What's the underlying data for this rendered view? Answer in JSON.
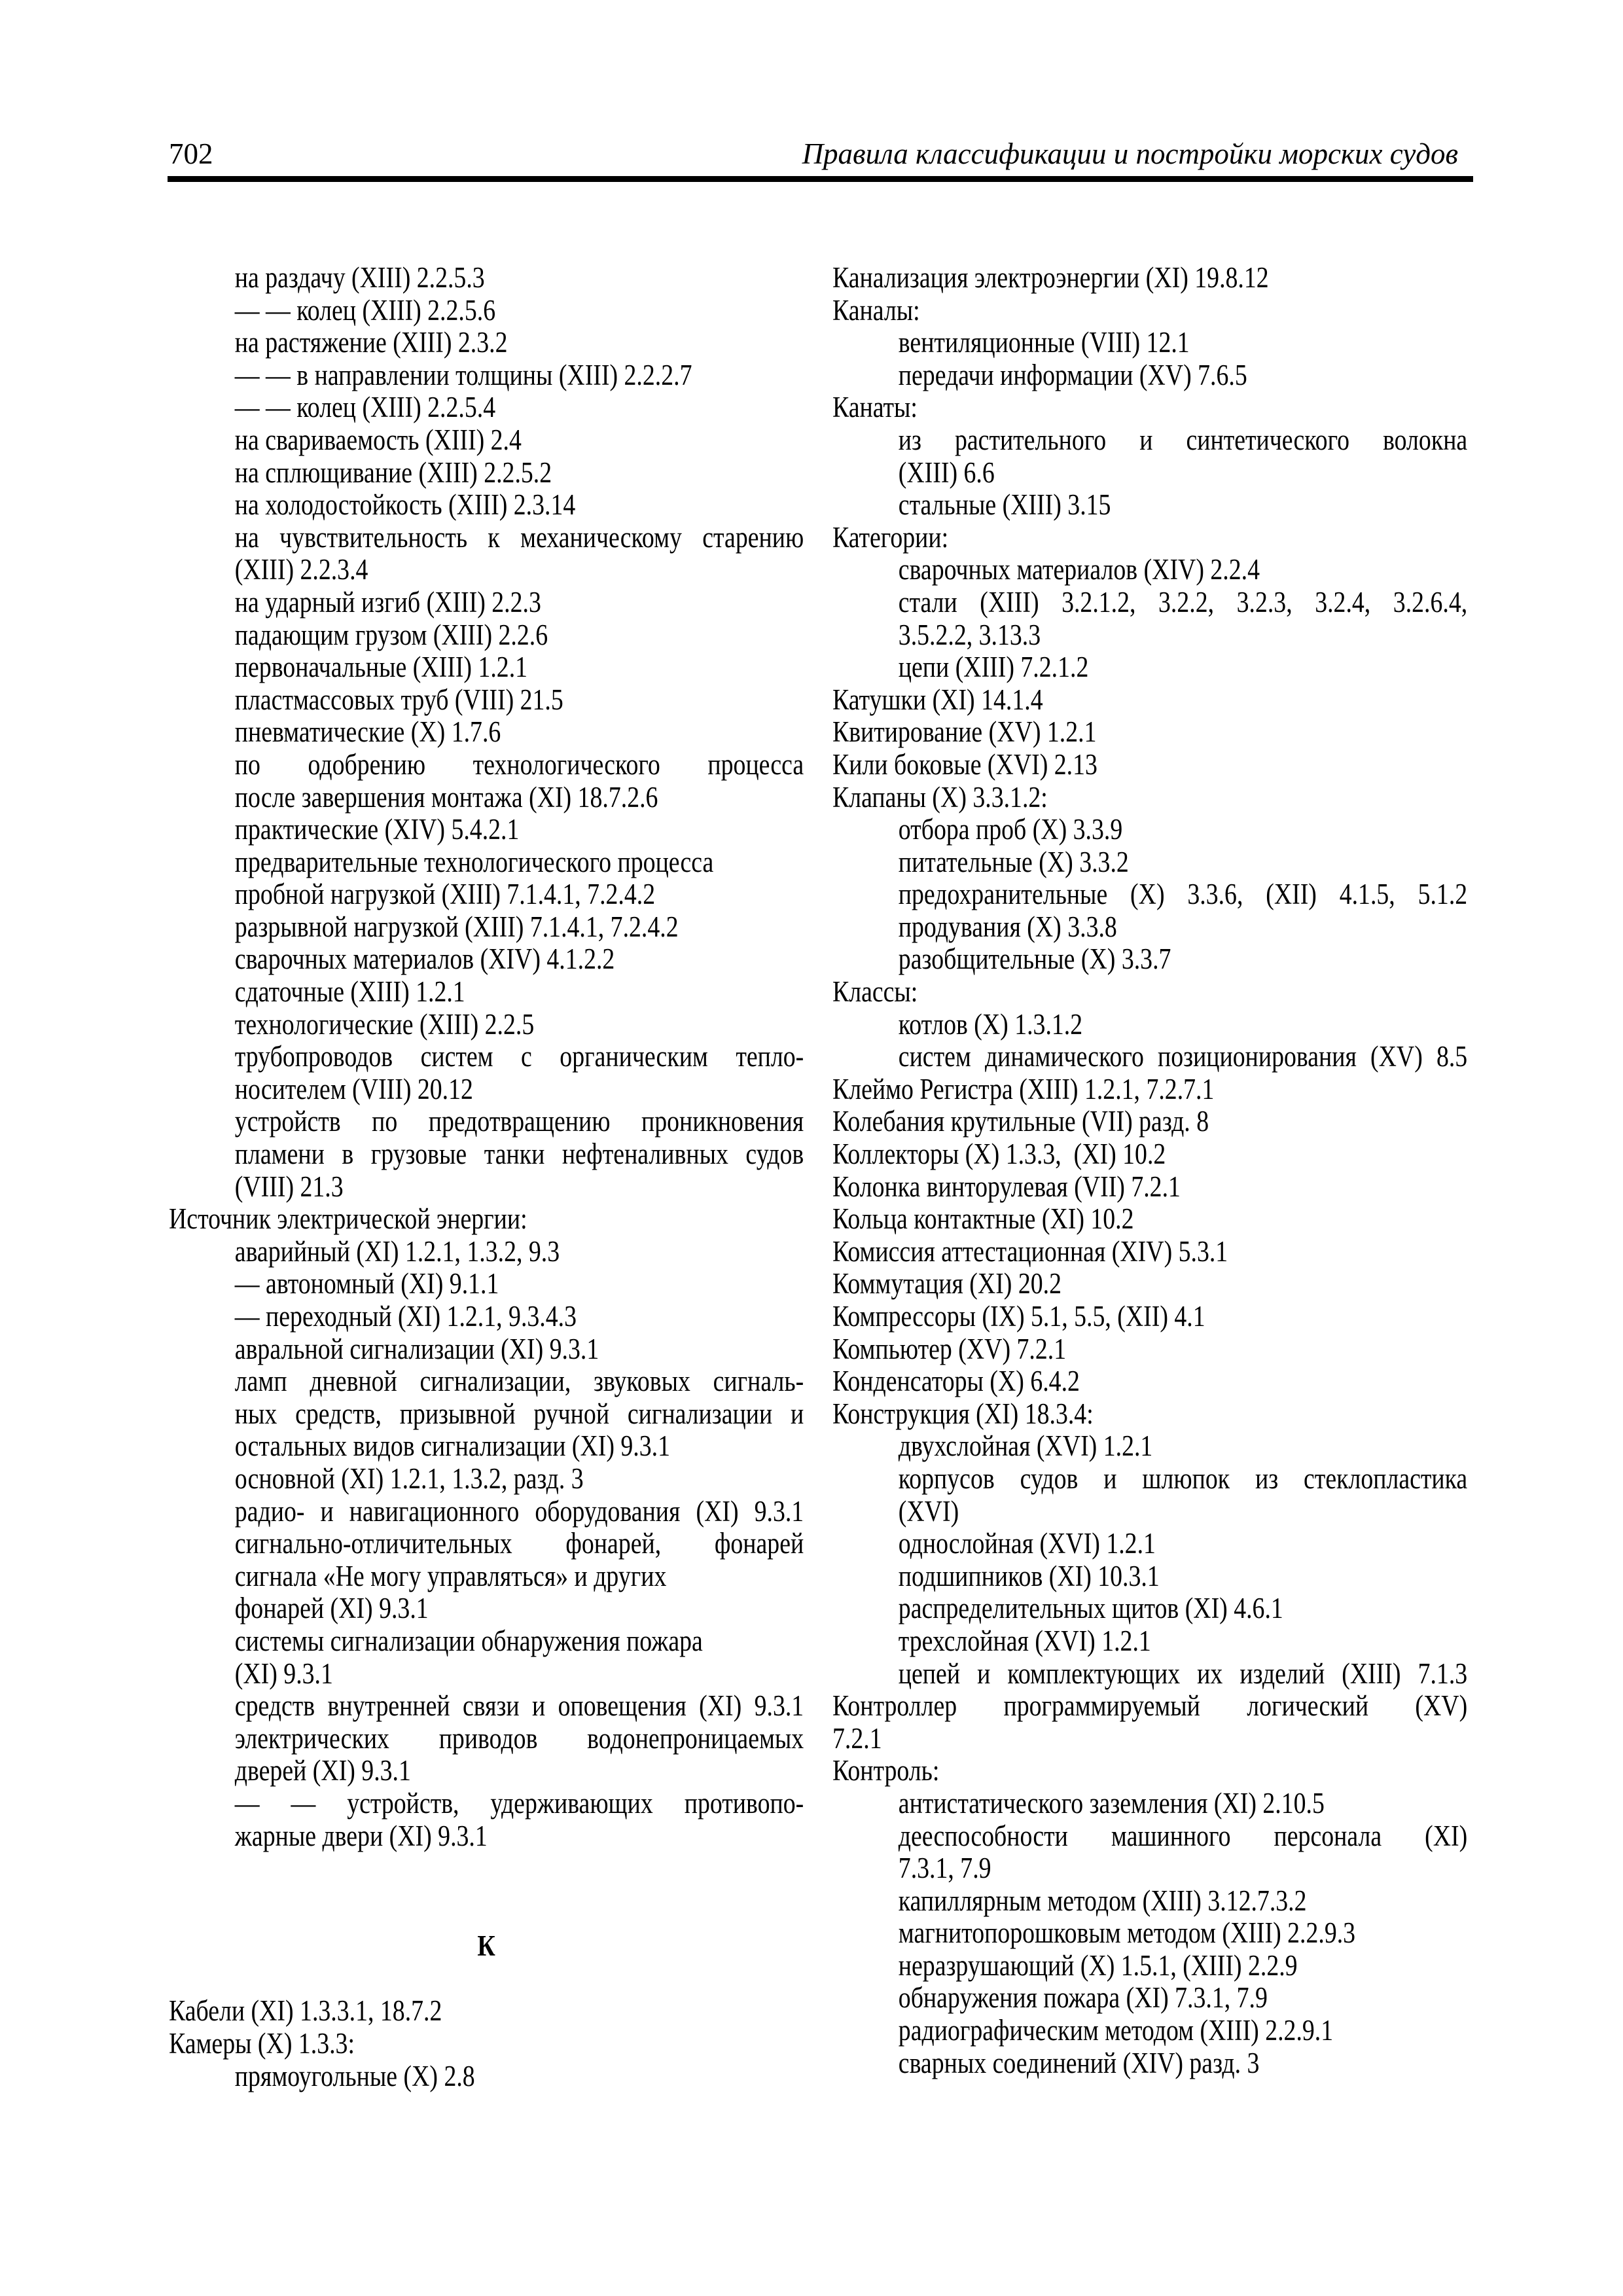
{
  "header": {
    "page_number": "702",
    "title": "Правила классификации и постройки морских судов"
  },
  "left_column": {
    "lines": [
      {
        "t": "на раздачу (XIII) 2.2.5.3",
        "i": 1
      },
      {
        "t": "— — колец (XIII) 2.2.5.6",
        "i": 1
      },
      {
        "t": "на растяжение (XIII) 2.3.2",
        "i": 1
      },
      {
        "t": "— — в направлении толщины (XIII) 2.2.2.7",
        "i": 1
      },
      {
        "t": "— — колец (XIII) 2.2.5.4",
        "i": 1
      },
      {
        "t": "на свариваемость (XIII) 2.4",
        "i": 1
      },
      {
        "t": "на сплющивание (XIII) 2.2.5.2",
        "i": 1
      },
      {
        "t": "на холодостойкость (XIII) 2.3.14",
        "i": 1
      },
      {
        "t": "на чувствительность к механическому старению",
        "i": 1,
        "j": true
      },
      {
        "t": "(XIII) 2.2.3.4",
        "i": 1
      },
      {
        "t": "на ударный изгиб (XIII) 2.2.3",
        "i": 1
      },
      {
        "t": "падающим грузом (XIII) 2.2.6",
        "i": 1
      },
      {
        "t": "первоначальные (XIII) 1.2.1",
        "i": 1
      },
      {
        "t": "пластмассовых труб (VIII) 21.5",
        "i": 1
      },
      {
        "t": "пневматические (X) 1.7.6",
        "i": 1
      },
      {
        "t": "по одобрению технологического процесса",
        "i": 1,
        "j": true
      },
      {
        "t": "после завершения монтажа (XI) 18.7.2.6",
        "i": 1
      },
      {
        "t": "практические (XIV) 5.4.2.1",
        "i": 1
      },
      {
        "t": "предварительные технологического процесса",
        "i": 1
      },
      {
        "t": "пробной нагрузкой (XIII) 7.1.4.1, 7.2.4.2",
        "i": 1
      },
      {
        "t": "разрывной нагрузкой (XIII) 7.1.4.1, 7.2.4.2",
        "i": 1
      },
      {
        "t": "сварочных материалов (XIV) 4.1.2.2",
        "i": 1
      },
      {
        "t": "сдаточные (XIII) 1.2.1",
        "i": 1
      },
      {
        "t": "технологические (XIII) 2.2.5",
        "i": 1
      },
      {
        "t": "трубопроводов систем с органическим тепло-",
        "i": 1,
        "j": true
      },
      {
        "t": "носителем (VIII) 20.12",
        "i": 1
      },
      {
        "t": "устройств по предотвращению проникновения",
        "i": 1,
        "j": true
      },
      {
        "t": "пламени в грузовые танки нефтеналивных судов",
        "i": 1,
        "j": true
      },
      {
        "t": "(VIII) 21.3",
        "i": 1
      },
      {
        "t": "Источник электрической энергии:",
        "i": 0
      },
      {
        "t": "аварийный (XI) 1.2.1, 1.3.2, 9.3",
        "i": 1
      },
      {
        "t": "— автономный (XI) 9.1.1",
        "i": 1
      },
      {
        "t": "— переходный (XI) 1.2.1, 9.3.4.3",
        "i": 1
      },
      {
        "t": "авральной сигнализации (XI) 9.3.1",
        "i": 1
      },
      {
        "t": "ламп дневной сигнализации, звуковых сигналь-",
        "i": 1,
        "j": true
      },
      {
        "t": "ных средств, призывной ручной сигнализации и",
        "i": 1,
        "j": true
      },
      {
        "t": "остальных видов сигнализации (XI) 9.3.1",
        "i": 1
      },
      {
        "t": "основной (XI) 1.2.1, 1.3.2, разд. 3",
        "i": 1
      },
      {
        "t": "радио- и навигационного оборудования (XI) 9.3.1",
        "i": 1,
        "j": true
      },
      {
        "t": "сигнально-отличительных фонарей, фонарей",
        "i": 1,
        "j": true
      },
      {
        "t": "сигнала «Не могу управляться» и других",
        "i": 1
      },
      {
        "t": "фонарей (XI) 9.3.1",
        "i": 1
      },
      {
        "t": "системы сигнализации обнаружения пожара",
        "i": 1
      },
      {
        "t": "(XI) 9.3.1",
        "i": 1
      },
      {
        "t": "средств внутренней связи и оповещения (XI) 9.3.1",
        "i": 1,
        "j": true
      },
      {
        "t": "электрических приводов водонепроницаемых",
        "i": 1,
        "j": true
      },
      {
        "t": "дверей (XI) 9.3.1",
        "i": 1
      },
      {
        "t": "— — устройств, удерживающих противопо-",
        "i": 1,
        "j": true
      },
      {
        "t": "жарные двери (XI) 9.3.1",
        "i": 1
      },
      {
        "t": ""
      },
      {
        "t": ""
      },
      {
        "t": "К",
        "h": true
      },
      {
        "t": ""
      },
      {
        "t": "Кабели (XI) 1.3.3.1, 18.7.2",
        "i": 0
      },
      {
        "t": "Камеры (X) 1.3.3:",
        "i": 0
      },
      {
        "t": "прямоугольные (X) 2.8",
        "i": 1
      }
    ]
  },
  "right_column": {
    "lines": [
      {
        "t": "Канализация электроэнергии (XI) 19.8.12",
        "i": 0
      },
      {
        "t": "Каналы:",
        "i": 0
      },
      {
        "t": "вентиляционные (VIII) 12.1",
        "i": 1
      },
      {
        "t": "передачи информации (XV) 7.6.5",
        "i": 1
      },
      {
        "t": "Канаты:",
        "i": 0
      },
      {
        "t": "из растительного и синтетического волокна",
        "i": 1,
        "j": true
      },
      {
        "t": "(XIII) 6.6",
        "i": 1
      },
      {
        "t": "стальные (XIII) 3.15",
        "i": 1
      },
      {
        "t": "Категории:",
        "i": 0
      },
      {
        "t": "сварочных материалов (XIV) 2.2.4",
        "i": 1
      },
      {
        "t": "стали (XIII) 3.2.1.2, 3.2.2, 3.2.3, 3.2.4, 3.2.6.4,",
        "i": 1,
        "j": true
      },
      {
        "t": "3.5.2.2, 3.13.3",
        "i": 1
      },
      {
        "t": "цепи (XIII) 7.2.1.2",
        "i": 1
      },
      {
        "t": "Катушки (XI) 14.1.4",
        "i": 0
      },
      {
        "t": "Квитирование (XV) 1.2.1",
        "i": 0
      },
      {
        "t": "Кили боковые (XVI) 2.13",
        "i": 0
      },
      {
        "t": "Клапаны (X) 3.3.1.2:",
        "i": 0
      },
      {
        "t": "отбора проб (X) 3.3.9",
        "i": 1
      },
      {
        "t": "питательные (X) 3.3.2",
        "i": 1
      },
      {
        "t": "предохранительные (X) 3.3.6, (XII) 4.1.5, 5.1.2",
        "i": 1,
        "j": true
      },
      {
        "t": "продувания (X) 3.3.8",
        "i": 1
      },
      {
        "t": "разобщительные (X) 3.3.7",
        "i": 1
      },
      {
        "t": "Классы:",
        "i": 0
      },
      {
        "t": "котлов (X) 1.3.1.2",
        "i": 1
      },
      {
        "t": "систем динамического позиционирования (XV) 8.5",
        "i": 1,
        "j": true
      },
      {
        "t": "Клеймо Регистра (XIII) 1.2.1, 7.2.7.1",
        "i": 0
      },
      {
        "t": "Колебания крутильные (VII) разд. 8",
        "i": 0
      },
      {
        "t": "Коллекторы (X) 1.3.3,  (XI) 10.2",
        "i": 0
      },
      {
        "t": "Колонка винторулевая (VII) 7.2.1",
        "i": 0
      },
      {
        "t": "Кольца контактные (XI) 10.2",
        "i": 0
      },
      {
        "t": "Комиссия аттестационная (XIV) 5.3.1",
        "i": 0
      },
      {
        "t": "Коммутация (XI) 20.2",
        "i": 0
      },
      {
        "t": "Компрессоры (IX) 5.1, 5.5, (XII) 4.1",
        "i": 0
      },
      {
        "t": "Компьютер (XV) 7.2.1",
        "i": 0
      },
      {
        "t": "Конденсаторы (X) 6.4.2",
        "i": 0
      },
      {
        "t": "Конструкция (XI) 18.3.4:",
        "i": 0
      },
      {
        "t": "двухслойная (XVI) 1.2.1",
        "i": 1
      },
      {
        "t": "корпусов судов и шлюпок из стеклопластика",
        "i": 1,
        "j": true
      },
      {
        "t": "(XVI)",
        "i": 1
      },
      {
        "t": "однослойная (XVI) 1.2.1",
        "i": 1
      },
      {
        "t": "подшипников (XI) 10.3.1",
        "i": 1
      },
      {
        "t": "распределительных щитов (XI) 4.6.1",
        "i": 1
      },
      {
        "t": "трехслойная (XVI) 1.2.1",
        "i": 1
      },
      {
        "t": "цепей и комплектующих их изделий (XIII) 7.1.3",
        "i": 1,
        "j": true
      },
      {
        "t": "Контроллер программируемый логический (XV)",
        "i": 0,
        "j": true
      },
      {
        "t": "7.2.1",
        "i": 0
      },
      {
        "t": "Контроль:",
        "i": 0
      },
      {
        "t": "антистатического заземления (XI) 2.10.5",
        "i": 1
      },
      {
        "t": "дееспособности машинного персонала (XI)",
        "i": 1,
        "j": true
      },
      {
        "t": "7.3.1, 7.9",
        "i": 1
      },
      {
        "t": "капиллярным методом (XIII) 3.12.7.3.2",
        "i": 1
      },
      {
        "t": "магнитопорошковым методом (XIII) 2.2.9.3",
        "i": 1
      },
      {
        "t": "неразрушающий (X) 1.5.1, (XIII) 2.2.9",
        "i": 1
      },
      {
        "t": "обнаружения пожара (XI) 7.3.1, 7.9",
        "i": 1
      },
      {
        "t": "радиографическим методом (XIII) 2.2.9.1",
        "i": 1
      },
      {
        "t": "сварных соединений (XIV) разд. 3",
        "i": 1
      }
    ]
  }
}
